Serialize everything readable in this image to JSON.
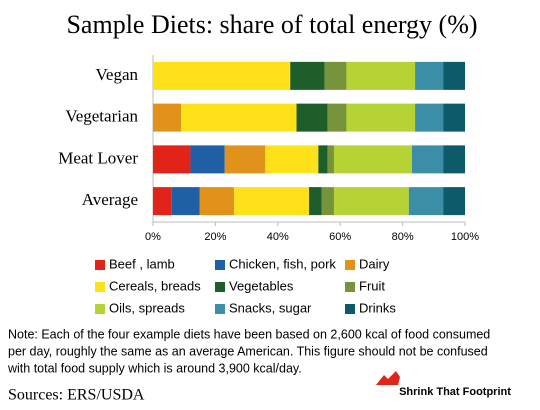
{
  "chart_data": {
    "type": "stacked-bar-horizontal",
    "title": "Sample Diets: share of total energy (%)",
    "categories": [
      "Vegan",
      "Vegetarian",
      "Meat Lover",
      "Average"
    ],
    "series": [
      {
        "name": "Beef , lamb",
        "color": "#e2231a",
        "values": [
          0,
          0,
          12,
          6
        ]
      },
      {
        "name": "Chicken, fish, pork",
        "color": "#1f5fa6",
        "values": [
          0,
          0,
          11,
          9
        ]
      },
      {
        "name": "Dairy",
        "color": "#e0921a",
        "values": [
          0,
          9,
          13,
          11
        ]
      },
      {
        "name": "Cereals, breads",
        "color": "#ffe11a",
        "values": [
          44,
          37,
          17,
          24
        ]
      },
      {
        "name": "Vegetables",
        "color": "#1d5e2a",
        "values": [
          11,
          10,
          3,
          4
        ]
      },
      {
        "name": "Fruit",
        "color": "#77933c",
        "values": [
          7,
          6,
          2,
          4
        ]
      },
      {
        "name": "Oils, spreads",
        "color": "#b5d334",
        "values": [
          22,
          22,
          25,
          24
        ]
      },
      {
        "name": "Snacks, sugar",
        "color": "#3b8ea5",
        "values": [
          9,
          9,
          10,
          11
        ]
      },
      {
        "name": "Drinks",
        "color": "#0c5a6a",
        "values": [
          7,
          7,
          7,
          7
        ]
      }
    ],
    "xlim": [
      0,
      100
    ],
    "xticks": [
      {
        "value": 0,
        "label": "0%"
      },
      {
        "value": 20,
        "label": "20%"
      },
      {
        "value": 40,
        "label": "40%"
      },
      {
        "value": 60,
        "label": "60%"
      },
      {
        "value": 80,
        "label": "80%"
      },
      {
        "value": 100,
        "label": "100%"
      }
    ],
    "note": [
      "Note: Each of the four example diets have been based on 2,600 kcal of food consumed",
      "per day, roughly the same as an average American.  This figure should not be confused",
      "with total food supply which is around 3,900 kcal/day."
    ],
    "source": "Sources:  ERS/USDA",
    "logo": "Shrink That Footprint"
  }
}
